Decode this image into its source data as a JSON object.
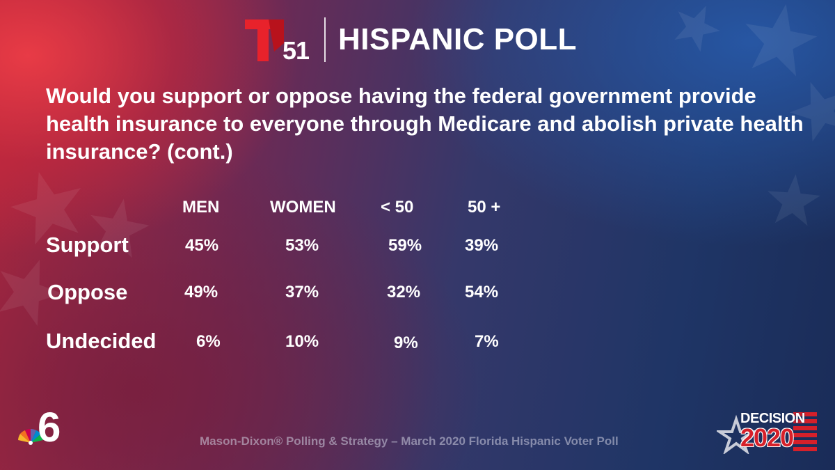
{
  "header": {
    "channel_number": "51",
    "title": "HISPANIC POLL"
  },
  "question": "Would you support or oppose having the federal government provide health insurance to everyone through Medicare and abolish private health insurance? (cont.)",
  "table": {
    "columns": [
      "MEN",
      "WOMEN",
      "< 50",
      "50 +"
    ],
    "rows": [
      {
        "label": "Support",
        "values": [
          "45%",
          "53%",
          "59%",
          "39%"
        ]
      },
      {
        "label": "Oppose",
        "values": [
          "49%",
          "37%",
          "32%",
          "54%"
        ]
      },
      {
        "label": "Undecided",
        "values": [
          "6%",
          "10%",
          "9%",
          "7%"
        ]
      }
    ]
  },
  "footer": {
    "source": "Mason-Dixon® Polling & Strategy – March 2020 Florida Hispanic Voter Poll",
    "station_number": "6",
    "decision_word": "DECISION",
    "decision_year": "2020"
  },
  "colors": {
    "telemundo_red": "#e8222b",
    "text": "#ffffff",
    "footer_text": "#b9b9c8"
  }
}
